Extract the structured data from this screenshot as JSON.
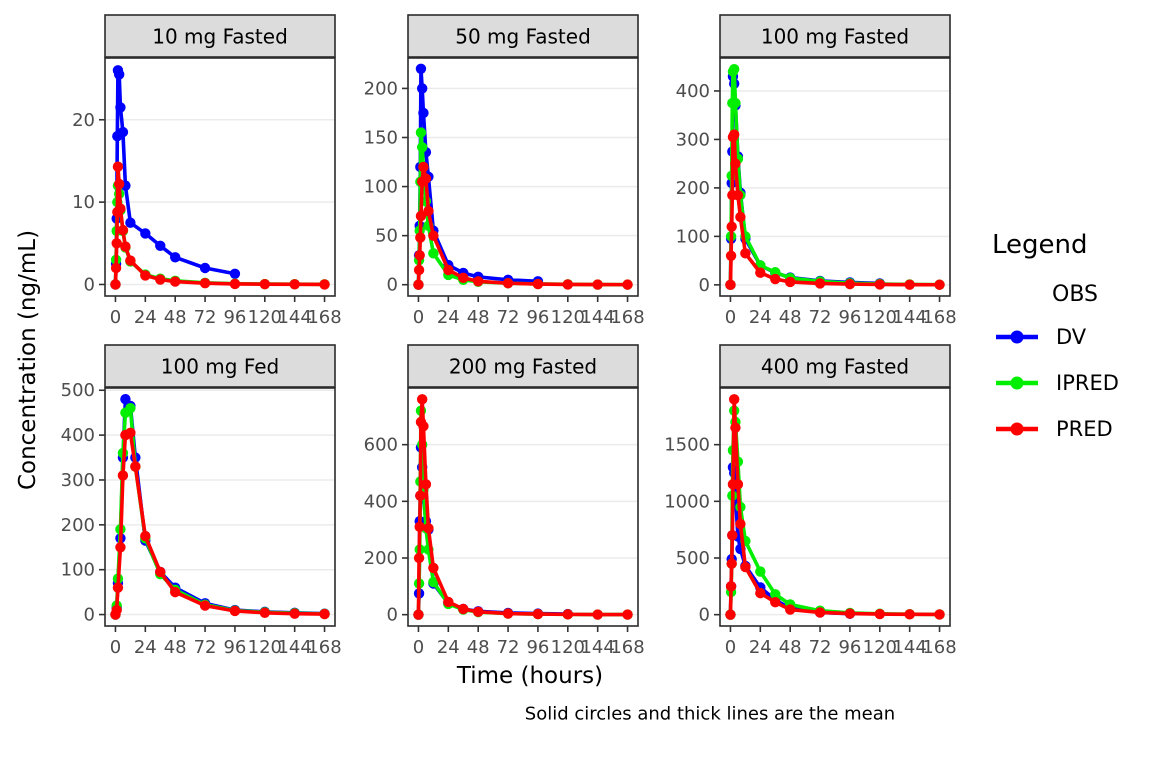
{
  "texts": {
    "y_axis_title": "Concentration (ng/mL)",
    "x_axis_title": "Time (hours)",
    "caption": "Solid circles and thick lines are the mean"
  },
  "legend": {
    "title": "Legend",
    "subtitle": "OBS",
    "entries": [
      {
        "label": "DV",
        "color": "#0000FF"
      },
      {
        "label": "IPRED",
        "color": "#00EE00"
      },
      {
        "label": "PRED",
        "color": "#FF0000"
      }
    ]
  },
  "style": {
    "strip_fill": "#DCDCDC",
    "panel_border": "#2B2B2B",
    "grid_color": "#EBEBEB",
    "tick_label_color": "#4D4D4D",
    "tick_color": "#333333"
  },
  "chart_data": {
    "type": "line",
    "facets": "2 rows x 3 cols",
    "title": "",
    "xlabel": "Time (hours)",
    "ylabel": "Concentration (ng/mL)",
    "caption": "Solid circles and thick lines are the mean",
    "legend_position": "right",
    "grid": "horizontal-major-only",
    "xlim": [
      -8.4,
      176.4
    ],
    "xticks": [
      0,
      24,
      48,
      72,
      96,
      120,
      144,
      168
    ],
    "series_order": [
      "DV",
      "IPRED",
      "PRED"
    ],
    "panels": [
      {
        "title": "10 mg Fasted",
        "ylim": [
          -1.4,
          27.5
        ],
        "yticks": [
          0,
          10,
          20
        ],
        "series": {
          "DV": {
            "t": [
              0,
              0.5,
              1,
              1.5,
              2,
              3,
              4,
              6,
              8,
              12,
              24,
              36,
              48,
              72,
              96
            ],
            "v": [
              0,
              2.5,
              8,
              18,
              26,
              25.5,
              21.5,
              18.5,
              12,
              7.5,
              6.2,
              4.7,
              3.3,
              2.0,
              1.3
            ]
          },
          "IPRED": {
            "t": [
              0,
              0.5,
              1,
              1.5,
              2,
              3,
              4,
              6,
              8,
              12,
              24,
              36,
              48,
              72,
              96,
              120,
              144,
              168
            ],
            "v": [
              0,
              3,
              6.5,
              10,
              12,
              11,
              9,
              6.5,
              4.5,
              2.8,
              1.2,
              0.7,
              0.45,
              0.2,
              0.1,
              0.05,
              0.03,
              0.02
            ]
          },
          "PRED": {
            "t": [
              0,
              0.5,
              1,
              1.5,
              2,
              3,
              4,
              6,
              8,
              12,
              24,
              36,
              48,
              72,
              96,
              120,
              144,
              168
            ],
            "v": [
              0,
              2,
              5,
              8.8,
              14.3,
              12.2,
              9.2,
              6.6,
              4.6,
              2.9,
              1.1,
              0.6,
              0.35,
              0.15,
              0.07,
              0.04,
              0.02,
              0.01
            ]
          }
        }
      },
      {
        "title": "50 mg Fasted",
        "ylim": [
          -11.5,
          231
        ],
        "yticks": [
          0,
          50,
          100,
          150,
          200
        ],
        "series": {
          "DV": {
            "t": [
              0,
              0.5,
              1,
              1.5,
              2,
              3,
              4,
              6,
              8,
              12,
              24,
              36,
              48,
              72,
              96
            ],
            "v": [
              0,
              30,
              60,
              120,
              220,
              200,
              175,
              135,
              110,
              55,
              20,
              12,
              8,
              5,
              3.5
            ]
          },
          "IPRED": {
            "t": [
              0,
              0.5,
              1,
              1.5,
              2,
              3,
              4,
              6,
              8,
              12,
              24,
              36,
              48,
              72,
              96,
              120,
              144,
              168
            ],
            "v": [
              0,
              25,
              55,
              105,
              155,
              140,
              120,
              85,
              60,
              32,
              10,
              5,
              3,
              1.5,
              0.8,
              0.4,
              0.2,
              0.1
            ]
          },
          "PRED": {
            "t": [
              0,
              0.5,
              1,
              1.5,
              2,
              3,
              4,
              6,
              8,
              12,
              24,
              36,
              48,
              72,
              96,
              120,
              144,
              168
            ],
            "v": [
              0,
              15,
              30,
              48,
              70,
              105,
              120,
              108,
              75,
              50,
              15,
              7,
              3.5,
              1.5,
              0.7,
              0.3,
              0.15,
              0.08
            ]
          }
        }
      },
      {
        "title": "100 mg Fasted",
        "ylim": [
          -23,
          468
        ],
        "yticks": [
          0,
          100,
          200,
          300,
          400
        ],
        "series": {
          "DV": {
            "t": [
              0,
              0.5,
              1,
              1.5,
              2,
              3,
              4,
              6,
              8,
              12,
              24,
              36,
              48,
              72,
              96,
              120
            ],
            "v": [
              0,
              95,
              210,
              275,
              430,
              415,
              370,
              265,
              190,
              95,
              40,
              25,
              15,
              8,
              5,
              3
            ]
          },
          "IPRED": {
            "t": [
              0,
              0.5,
              1,
              1.5,
              2,
              3,
              4,
              6,
              8,
              12,
              24,
              36,
              48,
              72,
              96,
              120,
              144,
              168
            ],
            "v": [
              0,
              100,
              225,
              375,
              440,
              445,
              375,
              260,
              185,
              100,
              40,
              26,
              14,
              7,
              3.5,
              1.8,
              0.9,
              0.4
            ]
          },
          "PRED": {
            "t": [
              0,
              0.5,
              1,
              1.5,
              2,
              3,
              4,
              6,
              8,
              12,
              24,
              36,
              48,
              72,
              96,
              120,
              144,
              168
            ],
            "v": [
              0,
              60,
              120,
              185,
              305,
              310,
              250,
              185,
              140,
              65,
              25,
              12,
              6,
              3,
              1.5,
              0.8,
              0.4,
              0.2
            ]
          }
        }
      },
      {
        "title": "100 mg Fed",
        "ylim": [
          -25.5,
          505
        ],
        "yticks": [
          0,
          100,
          200,
          300,
          400,
          500
        ],
        "series": {
          "DV": {
            "t": [
              0,
              1,
              2,
              4,
              6,
              8,
              12,
              16,
              24,
              36,
              48,
              72,
              96,
              120,
              144,
              168
            ],
            "v": [
              0,
              15,
              70,
              170,
              350,
              480,
              465,
              350,
              165,
              95,
              60,
              25,
              10,
              6,
              4,
              2
            ]
          },
          "IPRED": {
            "t": [
              0,
              1,
              2,
              4,
              6,
              8,
              12,
              16,
              24,
              36,
              48,
              72,
              96,
              120,
              144,
              168
            ],
            "v": [
              0,
              20,
              80,
              190,
              360,
              450,
              460,
              330,
              170,
              90,
              55,
              22,
              9,
              5,
              3,
              1.5
            ]
          },
          "PRED": {
            "t": [
              0,
              1,
              2,
              4,
              6,
              8,
              12,
              16,
              24,
              36,
              48,
              72,
              96,
              120,
              144,
              168
            ],
            "v": [
              0,
              10,
              60,
              150,
              310,
              400,
              405,
              330,
              175,
              95,
              50,
              20,
              8,
              4,
              2,
              1
            ]
          }
        }
      },
      {
        "title": "200 mg Fasted",
        "ylim": [
          -40,
          800
        ],
        "yticks": [
          0,
          200,
          400,
          600
        ],
        "series": {
          "DV": {
            "t": [
              0,
              0.5,
              1,
              1.5,
              2,
              3,
              4,
              6,
              8,
              12,
              24,
              36,
              48,
              72,
              96,
              120
            ],
            "v": [
              0,
              75,
              330,
              420,
              590,
              520,
              410,
              330,
              300,
              110,
              40,
              20,
              12,
              6,
              4,
              2
            ]
          },
          "IPRED": {
            "t": [
              0,
              0.5,
              1,
              1.5,
              2,
              3,
              4,
              6,
              8,
              12,
              24,
              36,
              48,
              72,
              96,
              120,
              144,
              168
            ],
            "v": [
              0,
              110,
              230,
              470,
              720,
              600,
              440,
              305,
              230,
              115,
              38,
              18,
              9,
              4,
              2,
              1,
              0.5,
              0.3
            ]
          },
          "PRED": {
            "t": [
              0,
              0.5,
              1,
              1.5,
              2,
              3,
              4,
              6,
              8,
              12,
              24,
              36,
              48,
              72,
              96,
              120,
              144,
              168
            ],
            "v": [
              0,
              200,
              310,
              420,
              680,
              760,
              665,
              460,
              305,
              165,
              45,
              20,
              10,
              4,
              2,
              1,
              0.5,
              0.3
            ]
          }
        }
      },
      {
        "title": "400 mg Fasted",
        "ylim": [
          -100,
          2000
        ],
        "yticks": [
          0,
          500,
          1000,
          1500
        ],
        "series": {
          "DV": {
            "t": [
              0,
              0.5,
              1,
              1.5,
              2,
              3,
              4,
              6,
              8,
              12,
              24,
              36,
              48,
              72,
              96
            ],
            "v": [
              0,
              250,
              490,
              700,
              1300,
              1250,
              1050,
              690,
              580,
              430,
              240,
              130,
              55,
              20,
              8
            ]
          },
          "IPRED": {
            "t": [
              0,
              0.5,
              1,
              1.5,
              2,
              3,
              4,
              6,
              8,
              12,
              24,
              36,
              48,
              72,
              96,
              120,
              144,
              168
            ],
            "v": [
              0,
              200,
              450,
              1050,
              1450,
              1800,
              1700,
              1350,
              950,
              650,
              380,
              180,
              90,
              35,
              15,
              8,
              4,
              2
            ]
          },
          "PRED": {
            "t": [
              0,
              0.5,
              1,
              1.5,
              2,
              3,
              4,
              6,
              8,
              12,
              24,
              36,
              48,
              72,
              96,
              120,
              144,
              168
            ],
            "v": [
              0,
              250,
              450,
              700,
              1150,
              1900,
              1650,
              1150,
              800,
              420,
              190,
              110,
              45,
              20,
              10,
              5,
              3,
              2
            ]
          }
        }
      }
    ]
  }
}
